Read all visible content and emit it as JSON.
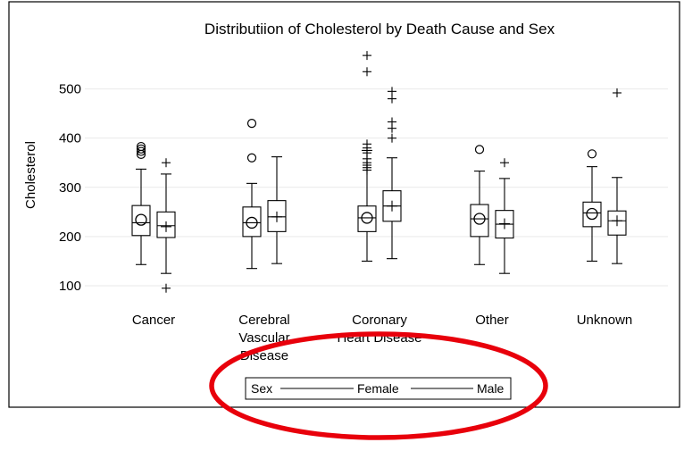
{
  "chart_data": {
    "type": "box",
    "title": "Distributiion of Cholesterol by Death Cause and Sex",
    "xlabel": "",
    "ylabel": "Cholesterol",
    "ylim": [
      60,
      590
    ],
    "yticks": [
      100,
      200,
      300,
      400,
      500
    ],
    "grid": "horizontal",
    "categories": [
      "Cancer",
      "Cerebral Vascular Disease",
      "Coronary Heart Disease",
      "Other",
      "Unknown"
    ],
    "category_lines": [
      [
        "Cancer"
      ],
      [
        "Cerebral",
        "Vascular",
        "Disease"
      ],
      [
        "Coronary",
        "Heart Disease"
      ],
      [
        "Other"
      ],
      [
        "Unknown"
      ]
    ],
    "legend": {
      "title": "Sex",
      "position": "bottom",
      "entries": [
        "Female",
        "Male"
      ]
    },
    "mean_markers": {
      "Female": "circle",
      "Male": "plus"
    },
    "series": [
      {
        "name": "Female",
        "boxes": [
          {
            "category": "Cancer",
            "whisker_low": 143,
            "q1": 202,
            "median": 228,
            "q3": 263,
            "whisker_high": 337,
            "mean": 234,
            "outliers": [
              367,
              373,
              378,
              383
            ]
          },
          {
            "category": "Cerebral Vascular Disease",
            "whisker_low": 135,
            "q1": 200,
            "median": 228,
            "q3": 260,
            "whisker_high": 308,
            "mean": 228,
            "outliers": [
              360,
              430
            ]
          },
          {
            "category": "Coronary Heart Disease",
            "whisker_low": 150,
            "q1": 210,
            "median": 238,
            "q3": 262,
            "whisker_high": 375,
            "mean": 238,
            "outliers": [
              335,
              340,
              345,
              350,
              358,
              370,
              380,
              388,
              535,
              568
            ]
          },
          {
            "category": "Other",
            "whisker_low": 143,
            "q1": 200,
            "median": 236,
            "q3": 265,
            "whisker_high": 333,
            "mean": 236,
            "outliers": [
              377
            ]
          },
          {
            "category": "Unknown",
            "whisker_low": 150,
            "q1": 220,
            "median": 248,
            "q3": 270,
            "whisker_high": 342,
            "mean": 246,
            "outliers": [
              368
            ]
          }
        ]
      },
      {
        "name": "Male",
        "boxes": [
          {
            "category": "Cancer",
            "whisker_low": 125,
            "q1": 198,
            "median": 222,
            "q3": 250,
            "whisker_high": 327,
            "mean": 220,
            "outliers": [
              95,
              350
            ]
          },
          {
            "category": "Cerebral Vascular Disease",
            "whisker_low": 145,
            "q1": 210,
            "median": 240,
            "q3": 273,
            "whisker_high": 362,
            "mean": 240,
            "outliers": []
          },
          {
            "category": "Coronary Heart Disease",
            "whisker_low": 155,
            "q1": 231,
            "median": 262,
            "q3": 293,
            "whisker_high": 360,
            "mean": 262,
            "outliers": [
              400,
              420,
              433,
              480,
              495
            ]
          },
          {
            "category": "Other",
            "whisker_low": 125,
            "q1": 197,
            "median": 225,
            "q3": 253,
            "whisker_high": 318,
            "mean": 226,
            "outliers": [
              350
            ]
          },
          {
            "category": "Unknown",
            "whisker_low": 145,
            "q1": 203,
            "median": 232,
            "q3": 252,
            "whisker_high": 320,
            "mean": 232,
            "outliers": [
              492
            ]
          }
        ]
      }
    ]
  },
  "annotation": {
    "shape": "ellipse",
    "color": "#e8000b"
  },
  "colors": {
    "grid": "#e9e9e9",
    "frame": "#000000"
  }
}
